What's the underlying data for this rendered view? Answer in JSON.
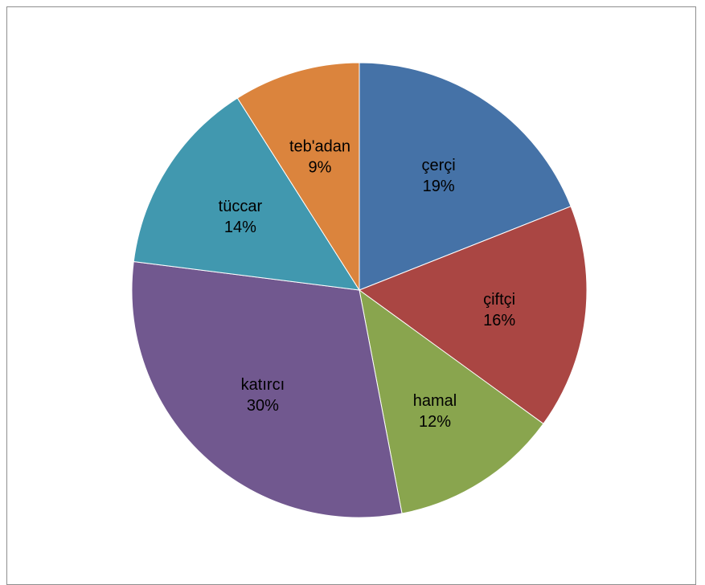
{
  "chart_data": {
    "type": "pie",
    "categories": [
      "çerçi",
      "çiftçi",
      "hamal",
      "katırcı",
      "tüccar",
      "teb'adan"
    ],
    "values": [
      19,
      16,
      12,
      30,
      14,
      9
    ],
    "value_labels": [
      "19%",
      "16%",
      "12%",
      "30%",
      "14%",
      "9%"
    ],
    "colors": [
      "#4572A7",
      "#AA4643",
      "#89A54E",
      "#71588F",
      "#4198AF",
      "#DB843D"
    ],
    "start_angle_deg": 0,
    "direction": "clockwise",
    "legend": "none",
    "labels": "inside"
  }
}
